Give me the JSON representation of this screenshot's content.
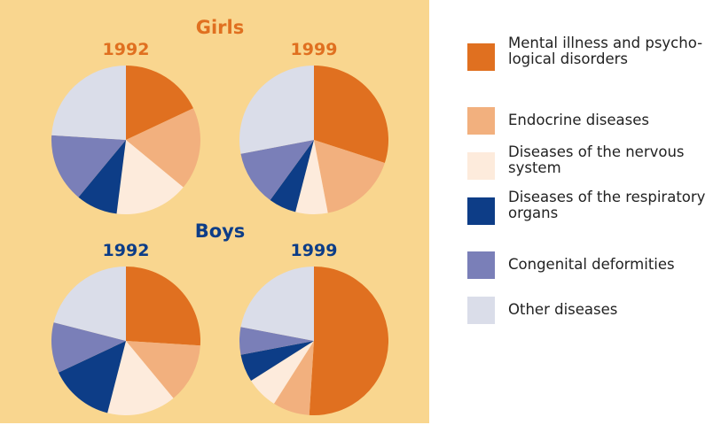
{
  "group_titles": [
    "Girls",
    "Boys"
  ],
  "group_colors": [
    "#e07020",
    "#0d3d87"
  ],
  "chart_data": [
    {
      "type": "pie",
      "title": "1992",
      "categories": [
        "Mental illness and psycho-\nlogical disorders",
        "Endocrine diseases",
        "Diseases of the nervous\nsystem",
        "Diseases of the respiratory\norgans",
        "Congenital deformities",
        "Other diseases"
      ],
      "colors": [
        "#e07020",
        "#f2b07e",
        "#fdebdc",
        "#0d3d87",
        "#7a7fb8",
        "#dadde9"
      ],
      "values": [
        18,
        18,
        16,
        9,
        15,
        24
      ]
    },
    {
      "type": "pie",
      "title": "1999",
      "categories": [
        "Mental illness and psycho-\nlogical disorders",
        "Endocrine diseases",
        "Diseases of the nervous\nsystem",
        "Diseases of the respiratory\norgans",
        "Congenital deformities",
        "Other diseases"
      ],
      "colors": [
        "#e07020",
        "#f2b07e",
        "#fdebdc",
        "#0d3d87",
        "#7a7fb8",
        "#dadde9"
      ],
      "values": [
        30,
        17,
        7,
        6,
        12,
        28
      ]
    },
    {
      "type": "pie",
      "title": "1992",
      "categories": [
        "Mental illness and psycho-\nlogical disorders",
        "Endocrine diseases",
        "Diseases of the nervous\nsystem",
        "Diseases of the respiratory\norgans",
        "Congenital deformities",
        "Other diseases"
      ],
      "colors": [
        "#e07020",
        "#f2b07e",
        "#fdebdc",
        "#0d3d87",
        "#7a7fb8",
        "#dadde9"
      ],
      "values": [
        26,
        13,
        15,
        14,
        11,
        21
      ]
    },
    {
      "type": "pie",
      "title": "1999",
      "categories": [
        "Mental illness and psycho-\nlogical disorders",
        "Endocrine diseases",
        "Diseases of the nervous\nsystem",
        "Diseases of the respiratory\norgans",
        "Congenital deformities",
        "Other diseases"
      ],
      "colors": [
        "#e07020",
        "#f2b07e",
        "#fdebdc",
        "#0d3d87",
        "#7a7fb8",
        "#dadde9"
      ],
      "values": [
        51,
        8,
        7,
        6,
        6,
        22
      ]
    }
  ]
}
